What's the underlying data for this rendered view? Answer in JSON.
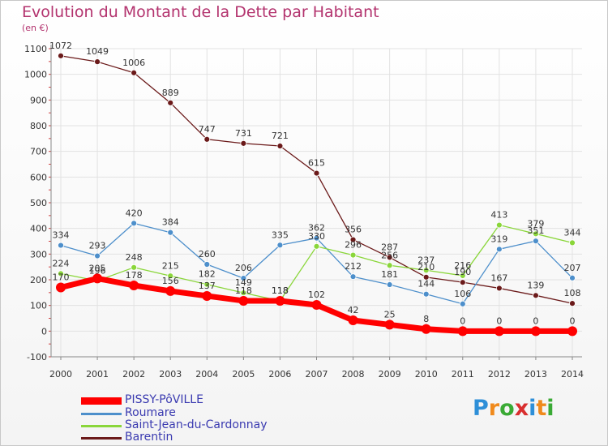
{
  "header": {
    "title": "Evolution du Montant de la Dette par Habitant",
    "unit": "(en €)"
  },
  "logo": {
    "letters": [
      "P",
      "r",
      "o",
      "x",
      "i",
      "t",
      "i"
    ],
    "colors": [
      "#2e8fd8",
      "#f08a1c",
      "#3aaa35",
      "#d92f2f",
      "#2e8fd8",
      "#f08a1c",
      "#3aaa35"
    ]
  },
  "chart_data": {
    "type": "line",
    "title": "Evolution du Montant de la Dette par Habitant",
    "ylabel": "(en €)",
    "xlabel": "",
    "x": [
      "2000",
      "2001",
      "2002",
      "2003",
      "2004",
      "2005",
      "2006",
      "2007",
      "2008",
      "2009",
      "2010",
      "2011",
      "2012",
      "2013",
      "2014"
    ],
    "ylim": [
      -100,
      1100
    ],
    "yticks": [
      "-100",
      "0",
      "100",
      "200",
      "300",
      "400",
      "500",
      "600",
      "700",
      "800",
      "900",
      "1000",
      "1100"
    ],
    "grid": true,
    "legend_placement": "bottom-left",
    "series": [
      {
        "name": "PISSY-PôVILLE",
        "color": "#ff0000",
        "values": [
          170,
          205,
          178,
          156,
          137,
          118,
          118,
          102,
          42,
          25,
          8,
          0,
          0,
          0,
          0
        ],
        "labels": [
          "170",
          "205",
          "178",
          "156",
          "137",
          "118",
          "118",
          "102",
          "42",
          "25",
          "8",
          "0",
          "0",
          "0",
          "0"
        ]
      },
      {
        "name": "Roumare",
        "color": "#4d8fcb",
        "values": [
          334,
          293,
          420,
          384,
          260,
          206,
          335,
          362,
          212,
          181,
          144,
          106,
          319,
          351,
          207
        ],
        "labels": [
          "334",
          "293",
          "420",
          "384",
          "260",
          "206",
          "335",
          "362",
          "212",
          "181",
          "144",
          "106",
          "319",
          "351",
          "207"
        ]
      },
      {
        "name": "Saint-Jean-du-Cardonnay",
        "color": "#8ad63a",
        "values": [
          224,
          196,
          248,
          215,
          182,
          149,
          118,
          330,
          296,
          256,
          237,
          216,
          413,
          379,
          344
        ],
        "labels": [
          "224",
          "196",
          "248",
          "215",
          "182",
          "149",
          "118",
          "330",
          "296",
          "256",
          "237",
          "216",
          "413",
          "379",
          "344"
        ]
      },
      {
        "name": "Barentin",
        "color": "#6b1a1a",
        "values": [
          1072,
          1049,
          1006,
          889,
          747,
          731,
          721,
          615,
          356,
          287,
          210,
          190,
          167,
          139,
          108
        ],
        "labels": [
          "1072",
          "1049",
          "1006",
          "889",
          "747",
          "731",
          "721",
          "615",
          "356",
          "287",
          "210",
          "190",
          "167",
          "139",
          "108"
        ]
      }
    ]
  }
}
